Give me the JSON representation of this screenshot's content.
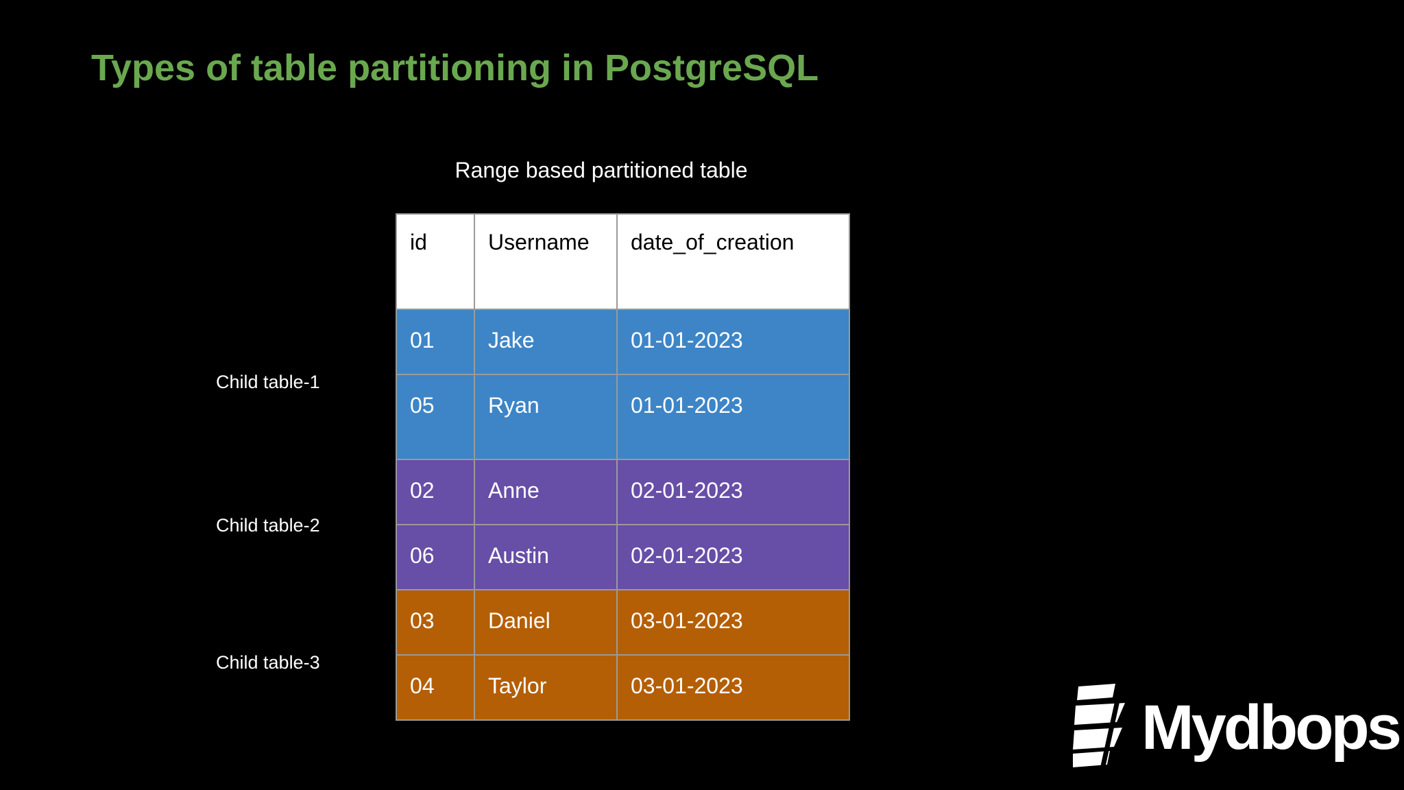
{
  "slide": {
    "title": "Types of table partitioning in PostgreSQL",
    "caption": "Range based partitioned table"
  },
  "table": {
    "headers": [
      "id",
      "Username",
      "date_of_creation"
    ],
    "rows": [
      {
        "id": "01",
        "username": "Jake",
        "date": "01-01-2023",
        "color": "#3d85c6"
      },
      {
        "id": "05",
        "username": "Ryan",
        "date": "01-01-2023",
        "color": "#3d85c6"
      },
      {
        "id": "02",
        "username": "Anne",
        "date": "02-01-2023",
        "color": "#674ea7"
      },
      {
        "id": "06",
        "username": "Austin",
        "date": "02-01-2023",
        "color": "#674ea7"
      },
      {
        "id": "03",
        "username": "Daniel",
        "date": "03-01-2023",
        "color": "#b45f06"
      },
      {
        "id": "04",
        "username": "Taylor",
        "date": "03-01-2023",
        "color": "#b45f06"
      }
    ]
  },
  "child_labels": [
    "Child table-1",
    "Child table-2",
    "Child table-3"
  ],
  "colors": {
    "title": "#6aa84f",
    "background": "#000000",
    "header_bg": "#ffffff"
  },
  "logo": {
    "text": "Mydbops",
    "icon": "mydbops-logo-icon"
  }
}
